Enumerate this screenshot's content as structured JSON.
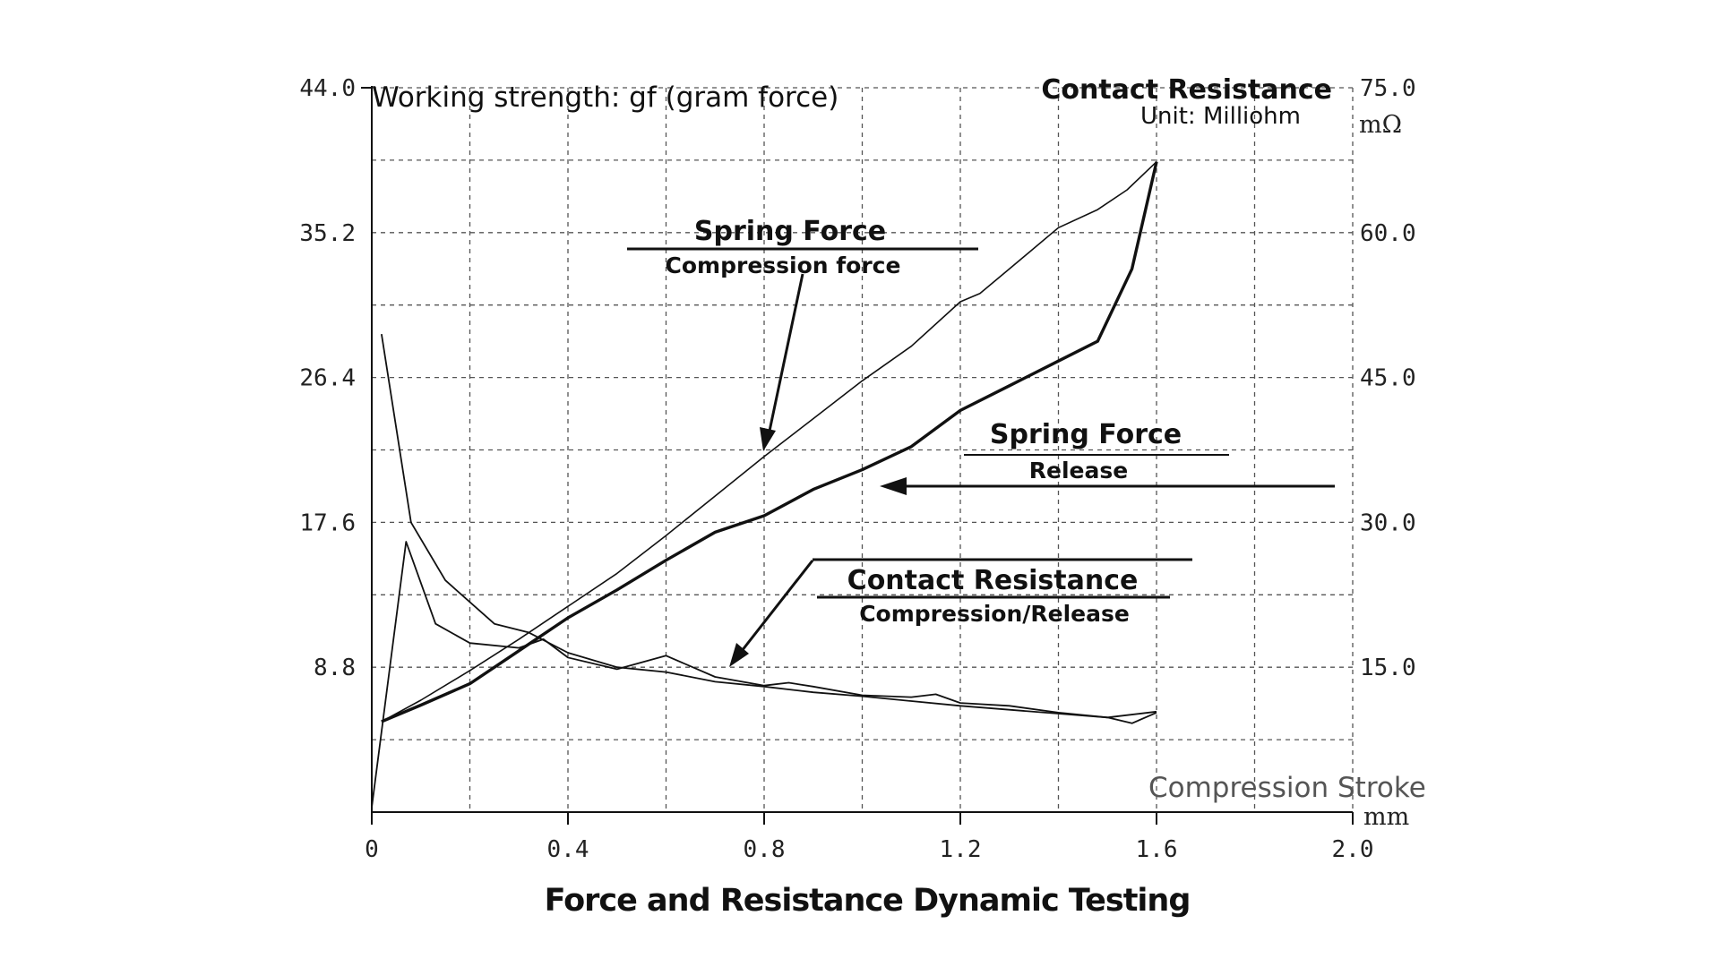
{
  "chart_data": {
    "type": "line",
    "title": "Force and Resistance Dynamic Testing",
    "left_axis_label": "Working strength: gf (gram force)",
    "right_axis_label": "Contact Resistance",
    "right_axis_unit_note": "Unit: Milliohm",
    "right_axis_unit": "mΩ",
    "xlabel": "Compression Stroke",
    "x_unit": "mm",
    "xlim": [
      0,
      2.0
    ],
    "x_ticks": [
      "0",
      "0.4",
      "0.8",
      "1.2",
      "1.6",
      "2.0"
    ],
    "ylim_left": [
      0,
      44.0
    ],
    "y_ticks_left": [
      "8.8",
      "17.6",
      "26.4",
      "35.2",
      "44.0"
    ],
    "ylim_right": [
      0,
      75.0
    ],
    "y_ticks_right": [
      "15.0",
      "30.0",
      "45.0",
      "60.0",
      "75.0"
    ],
    "grid": true,
    "series": [
      {
        "name": "Spring Force Compression force",
        "axis": "left",
        "points": [
          [
            0.02,
            5.5
          ],
          [
            0.1,
            6.8
          ],
          [
            0.2,
            8.6
          ],
          [
            0.3,
            10.5
          ],
          [
            0.4,
            12.5
          ],
          [
            0.5,
            14.5
          ],
          [
            0.6,
            16.8
          ],
          [
            0.7,
            19.2
          ],
          [
            0.8,
            21.6
          ],
          [
            0.9,
            23.9
          ],
          [
            1.0,
            26.2
          ],
          [
            1.1,
            28.3
          ],
          [
            1.2,
            31.0
          ],
          [
            1.24,
            31.5
          ],
          [
            1.3,
            33.0
          ],
          [
            1.4,
            35.5
          ],
          [
            1.48,
            36.6
          ],
          [
            1.54,
            37.8
          ],
          [
            1.6,
            39.5
          ]
        ]
      },
      {
        "name": "Spring Force Release",
        "axis": "left",
        "points": [
          [
            0.02,
            5.5
          ],
          [
            0.1,
            6.5
          ],
          [
            0.2,
            7.8
          ],
          [
            0.3,
            9.8
          ],
          [
            0.4,
            11.8
          ],
          [
            0.5,
            13.5
          ],
          [
            0.6,
            15.3
          ],
          [
            0.7,
            17.0
          ],
          [
            0.8,
            18.0
          ],
          [
            0.9,
            19.6
          ],
          [
            1.0,
            20.8
          ],
          [
            1.1,
            22.2
          ],
          [
            1.2,
            24.4
          ],
          [
            1.3,
            25.9
          ],
          [
            1.4,
            27.4
          ],
          [
            1.48,
            28.6
          ],
          [
            1.55,
            33.0
          ],
          [
            1.6,
            39.5
          ]
        ]
      },
      {
        "name": "Contact Resistance Compression",
        "axis": "right",
        "points": [
          [
            0.02,
            49.5
          ],
          [
            0.08,
            30.0
          ],
          [
            0.15,
            24.0
          ],
          [
            0.25,
            19.5
          ],
          [
            0.32,
            18.6
          ],
          [
            0.4,
            16.5
          ],
          [
            0.5,
            15.0
          ],
          [
            0.6,
            14.5
          ],
          [
            0.7,
            13.5
          ],
          [
            0.8,
            13.0
          ],
          [
            0.9,
            12.4
          ],
          [
            1.0,
            12.0
          ],
          [
            1.1,
            11.5
          ],
          [
            1.2,
            11.0
          ],
          [
            1.3,
            10.6
          ],
          [
            1.4,
            10.2
          ],
          [
            1.5,
            9.8
          ],
          [
            1.6,
            10.4
          ]
        ]
      },
      {
        "name": "Contact Resistance Release",
        "axis": "right",
        "points": [
          [
            0.0,
            0.5
          ],
          [
            0.07,
            28.0
          ],
          [
            0.13,
            19.5
          ],
          [
            0.2,
            17.5
          ],
          [
            0.3,
            17.0
          ],
          [
            0.35,
            17.9
          ],
          [
            0.4,
            16.0
          ],
          [
            0.5,
            14.8
          ],
          [
            0.6,
            16.2
          ],
          [
            0.7,
            14.0
          ],
          [
            0.8,
            13.1
          ],
          [
            0.85,
            13.4
          ],
          [
            0.9,
            13.0
          ],
          [
            1.0,
            12.1
          ],
          [
            1.1,
            11.9
          ],
          [
            1.15,
            12.2
          ],
          [
            1.2,
            11.3
          ],
          [
            1.3,
            11.0
          ],
          [
            1.4,
            10.3
          ],
          [
            1.5,
            9.8
          ],
          [
            1.55,
            9.2
          ],
          [
            1.6,
            10.3
          ]
        ]
      }
    ],
    "annotations": [
      {
        "title": "Spring Force",
        "subtitle": "Compression force"
      },
      {
        "title": "Spring Force",
        "subtitle": "Release"
      },
      {
        "title": "Contact Resistance",
        "subtitle": "Compression/Release"
      }
    ]
  }
}
